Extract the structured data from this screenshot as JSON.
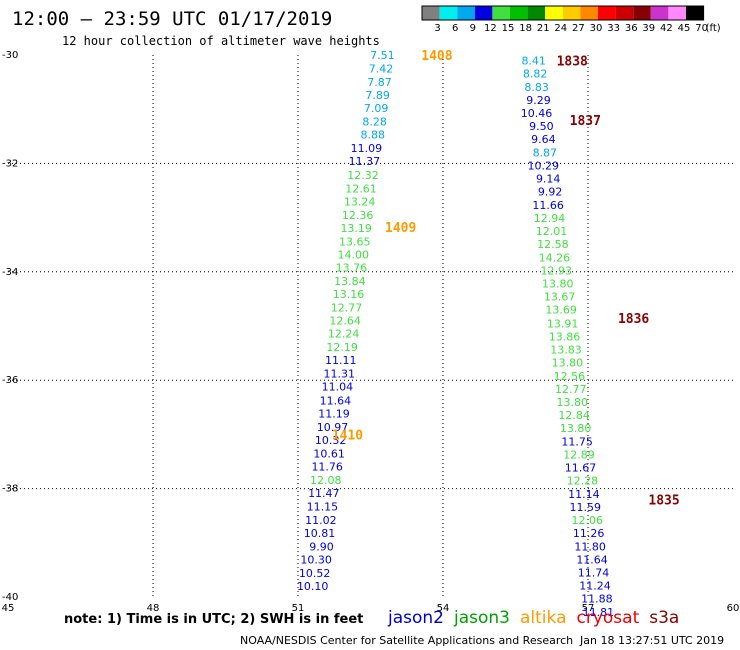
{
  "header": {
    "title": "12:00 – 23:59 UTC 01/17/2019",
    "subtitle": "12 hour collection of altimeter wave heights"
  },
  "color_scale": {
    "unit": "(ft)",
    "ticks": [
      "3",
      "6",
      "9",
      "12",
      "15",
      "18",
      "21",
      "24",
      "27",
      "30",
      "33",
      "36",
      "39",
      "42",
      "45",
      "70"
    ],
    "colors": [
      "#808080",
      "#00eeee",
      "#00a8f0",
      "#0000e0",
      "#40e040",
      "#00c000",
      "#008800",
      "#ffff00",
      "#ffcc00",
      "#ff8800",
      "#ff0000",
      "#cc0000",
      "#880000",
      "#cc33cc",
      "#ff88ff",
      "#000000"
    ]
  },
  "footer": {
    "note": "note: 1) Time is in UTC; 2) SWH is in feet",
    "credit": "NOAA/NESDIS Center for Satellite Applications and Research",
    "timestamp": "Jan 18 13:27:51 UTC 2019"
  },
  "legend": [
    {
      "name": "jason2",
      "color": "#0000cc"
    },
    {
      "name": "jason3",
      "color": "#00a000"
    },
    {
      "name": "altika",
      "color": "#ff9900"
    },
    {
      "name": "cryosat",
      "color": "#ee0000"
    },
    {
      "name": "s3a",
      "color": "#880000"
    }
  ],
  "chart_data": {
    "type": "scatter",
    "title": "12:00 – 23:59 UTC 01/17/2019",
    "subtitle": "12 hour collection of altimeter wave heights",
    "xlabel": "",
    "ylabel": "",
    "xlim": [
      45,
      60
    ],
    "ylim": [
      -40,
      -30
    ],
    "x_ticks": [
      "45",
      "48",
      "51",
      "54",
      "57",
      "60"
    ],
    "y_ticks": [
      "-30",
      "-32",
      "-34",
      "-36",
      "-38",
      "-40"
    ],
    "grid": true,
    "time_labels": [
      {
        "text": "1408",
        "x": 53.55,
        "y": -30.0,
        "color": "#ff9900"
      },
      {
        "text": "1409",
        "x": 52.8,
        "y": -33.17,
        "color": "#ff9900"
      },
      {
        "text": "1410",
        "x": 51.7,
        "y": -37.0,
        "color": "#ff9900"
      },
      {
        "text": "1838",
        "x": 56.35,
        "y": -30.1,
        "color": "#880000"
      },
      {
        "text": "1837",
        "x": 56.62,
        "y": -31.2,
        "color": "#880000"
      },
      {
        "text": "1836",
        "x": 57.62,
        "y": -34.85,
        "color": "#880000"
      },
      {
        "text": "1835",
        "x": 58.25,
        "y": -38.2,
        "color": "#880000"
      }
    ],
    "series": [
      {
        "name": "altika",
        "points": [
          {
            "x": 53.0,
            "y": -30.0,
            "v": "7.51",
            "c": "#00a8f0"
          },
          {
            "x": 52.97,
            "y": -30.25,
            "v": "7.42",
            "c": "#00a8f0"
          },
          {
            "x": 52.94,
            "y": -30.5,
            "v": "7.87",
            "c": "#00a8f0"
          },
          {
            "x": 52.9,
            "y": -30.74,
            "v": "7.89",
            "c": "#00a8f0"
          },
          {
            "x": 52.87,
            "y": -30.98,
            "v": "7.09",
            "c": "#00a8f0"
          },
          {
            "x": 52.84,
            "y": -31.23,
            "v": "8.28",
            "c": "#00a8f0"
          },
          {
            "x": 52.8,
            "y": -31.47,
            "v": "8.88",
            "c": "#00a8f0"
          },
          {
            "x": 52.74,
            "y": -31.72,
            "v": "11.09",
            "c": "#0000e0"
          },
          {
            "x": 52.7,
            "y": -31.96,
            "v": "11.37",
            "c": "#0000e0"
          },
          {
            "x": 52.67,
            "y": -32.21,
            "v": "12.32",
            "c": "#40e040"
          },
          {
            "x": 52.63,
            "y": -32.46,
            "v": "12.61",
            "c": "#40e040"
          },
          {
            "x": 52.6,
            "y": -32.7,
            "v": "13.24",
            "c": "#40e040"
          },
          {
            "x": 52.56,
            "y": -32.95,
            "v": "12.36",
            "c": "#40e040"
          },
          {
            "x": 52.53,
            "y": -33.19,
            "v": "13.19",
            "c": "#40e040"
          },
          {
            "x": 52.5,
            "y": -33.44,
            "v": "13.65",
            "c": "#40e040"
          },
          {
            "x": 52.47,
            "y": -33.68,
            "v": "14.00",
            "c": "#40e040"
          },
          {
            "x": 52.43,
            "y": -33.92,
            "v": "13.76",
            "c": "#40e040"
          },
          {
            "x": 52.4,
            "y": -34.17,
            "v": "13.84",
            "c": "#40e040"
          },
          {
            "x": 52.37,
            "y": -34.41,
            "v": "13.16",
            "c": "#40e040"
          },
          {
            "x": 52.33,
            "y": -34.66,
            "v": "12.77",
            "c": "#40e040"
          },
          {
            "x": 52.3,
            "y": -34.9,
            "v": "12.64",
            "c": "#40e040"
          },
          {
            "x": 52.27,
            "y": -35.14,
            "v": "12.24",
            "c": "#40e040"
          },
          {
            "x": 52.24,
            "y": -35.39,
            "v": "12.19",
            "c": "#40e040"
          },
          {
            "x": 52.21,
            "y": -35.63,
            "v": "11.11",
            "c": "#0000e0"
          },
          {
            "x": 52.18,
            "y": -35.88,
            "v": "11.31",
            "c": "#0000e0"
          },
          {
            "x": 52.14,
            "y": -36.12,
            "v": "11.04",
            "c": "#0000e0"
          },
          {
            "x": 52.1,
            "y": -36.37,
            "v": "11.64",
            "c": "#0000e0"
          },
          {
            "x": 52.07,
            "y": -36.61,
            "v": "11.19",
            "c": "#0000e0"
          },
          {
            "x": 52.04,
            "y": -36.86,
            "v": "10.97",
            "c": "#0000e0"
          },
          {
            "x": 52.0,
            "y": -37.1,
            "v": "10.32",
            "c": "#0000e0"
          },
          {
            "x": 51.97,
            "y": -37.35,
            "v": "10.61",
            "c": "#0000e0"
          },
          {
            "x": 51.93,
            "y": -37.59,
            "v": "11.76",
            "c": "#0000e0"
          },
          {
            "x": 51.9,
            "y": -37.84,
            "v": "12.08",
            "c": "#40e040"
          },
          {
            "x": 51.86,
            "y": -38.08,
            "v": "11.47",
            "c": "#0000e0"
          },
          {
            "x": 51.83,
            "y": -38.33,
            "v": "11.15",
            "c": "#0000e0"
          },
          {
            "x": 51.8,
            "y": -38.58,
            "v": "11.02",
            "c": "#0000e0"
          },
          {
            "x": 51.77,
            "y": -38.82,
            "v": "10.81",
            "c": "#0000e0"
          },
          {
            "x": 51.74,
            "y": -39.07,
            "v": "9.90",
            "c": "#0000e0"
          },
          {
            "x": 51.7,
            "y": -39.31,
            "v": "10.30",
            "c": "#0000e0"
          },
          {
            "x": 51.67,
            "y": -39.56,
            "v": "10.52",
            "c": "#0000e0"
          },
          {
            "x": 51.63,
            "y": -39.8,
            "v": "10.10",
            "c": "#0000e0"
          }
        ]
      },
      {
        "name": "s3a",
        "points": [
          {
            "x": 56.13,
            "y": -30.1,
            "v": "8.41",
            "c": "#00a8f0"
          },
          {
            "x": 56.16,
            "y": -30.34,
            "v": "8.82",
            "c": "#00a8f0"
          },
          {
            "x": 56.19,
            "y": -30.59,
            "v": "8.83",
            "c": "#00a8f0"
          },
          {
            "x": 56.23,
            "y": -30.83,
            "v": "9.29",
            "c": "#0000e0"
          },
          {
            "x": 56.26,
            "y": -31.07,
            "v": "10.46",
            "c": "#0000e0"
          },
          {
            "x": 56.29,
            "y": -31.31,
            "v": "9.50",
            "c": "#0000e0"
          },
          {
            "x": 56.33,
            "y": -31.55,
            "v": "9.64",
            "c": "#0000e0"
          },
          {
            "x": 56.36,
            "y": -31.8,
            "v": "8.87",
            "c": "#00a8f0"
          },
          {
            "x": 56.4,
            "y": -32.04,
            "v": "10.29",
            "c": "#0000e0"
          },
          {
            "x": 56.43,
            "y": -32.28,
            "v": "9.14",
            "c": "#0000e0"
          },
          {
            "x": 56.47,
            "y": -32.52,
            "v": "9.92",
            "c": "#0000e0"
          },
          {
            "x": 56.5,
            "y": -32.77,
            "v": "11.66",
            "c": "#0000e0"
          },
          {
            "x": 56.53,
            "y": -33.01,
            "v": "12.94",
            "c": "#40e040"
          },
          {
            "x": 56.57,
            "y": -33.25,
            "v": "12.01",
            "c": "#40e040"
          },
          {
            "x": 56.6,
            "y": -33.49,
            "v": "12.58",
            "c": "#40e040"
          },
          {
            "x": 56.63,
            "y": -33.74,
            "v": "14.26",
            "c": "#40e040"
          },
          {
            "x": 56.67,
            "y": -33.98,
            "v": "12.93",
            "c": "#40e040"
          },
          {
            "x": 56.7,
            "y": -34.22,
            "v": "13.80",
            "c": "#40e040"
          },
          {
            "x": 56.74,
            "y": -34.46,
            "v": "13.67",
            "c": "#40e040"
          },
          {
            "x": 56.77,
            "y": -34.7,
            "v": "13.69",
            "c": "#40e040"
          },
          {
            "x": 56.8,
            "y": -34.95,
            "v": "13.91",
            "c": "#40e040"
          },
          {
            "x": 56.84,
            "y": -35.19,
            "v": "13.86",
            "c": "#40e040"
          },
          {
            "x": 56.87,
            "y": -35.43,
            "v": "13.83",
            "c": "#40e040"
          },
          {
            "x": 56.9,
            "y": -35.67,
            "v": "13.80",
            "c": "#40e040"
          },
          {
            "x": 56.94,
            "y": -35.92,
            "v": "12.56",
            "c": "#40e040"
          },
          {
            "x": 56.97,
            "y": -36.16,
            "v": "12.77",
            "c": "#40e040"
          },
          {
            "x": 57.0,
            "y": -36.4,
            "v": "13.80",
            "c": "#40e040"
          },
          {
            "x": 57.04,
            "y": -36.64,
            "v": "12.84",
            "c": "#40e040"
          },
          {
            "x": 57.07,
            "y": -36.88,
            "v": "13.80",
            "c": "#40e040"
          },
          {
            "x": 57.1,
            "y": -37.13,
            "v": "11.75",
            "c": "#0000e0"
          },
          {
            "x": 57.14,
            "y": -37.37,
            "v": "12.89",
            "c": "#40e040"
          },
          {
            "x": 57.17,
            "y": -37.61,
            "v": "11.67",
            "c": "#0000e0"
          },
          {
            "x": 57.21,
            "y": -37.85,
            "v": "12.28",
            "c": "#40e040"
          },
          {
            "x": 57.24,
            "y": -38.1,
            "v": "11.14",
            "c": "#0000e0"
          },
          {
            "x": 57.27,
            "y": -38.34,
            "v": "11.59",
            "c": "#0000e0"
          },
          {
            "x": 57.31,
            "y": -38.58,
            "v": "12.06",
            "c": "#40e040"
          },
          {
            "x": 57.34,
            "y": -38.82,
            "v": "11.26",
            "c": "#0000e0"
          },
          {
            "x": 57.37,
            "y": -39.07,
            "v": "11.80",
            "c": "#0000e0"
          },
          {
            "x": 57.41,
            "y": -39.31,
            "v": "11.64",
            "c": "#0000e0"
          },
          {
            "x": 57.44,
            "y": -39.55,
            "v": "11.74",
            "c": "#0000e0"
          },
          {
            "x": 57.47,
            "y": -39.79,
            "v": "11.24",
            "c": "#0000e0"
          },
          {
            "x": 57.51,
            "y": -40.03,
            "v": "11.88",
            "c": "#0000e0"
          },
          {
            "x": 57.54,
            "y": -40.28,
            "v": "11.81",
            "c": "#0000e0"
          }
        ]
      }
    ]
  }
}
